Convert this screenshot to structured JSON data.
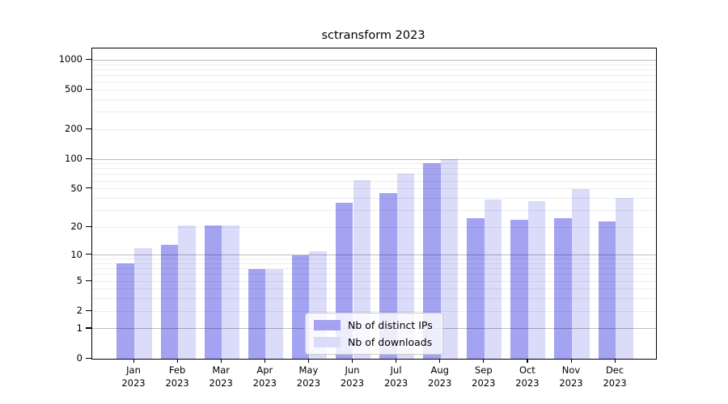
{
  "chart_data": {
    "type": "bar",
    "title": "sctransform 2023",
    "categories": [
      "Jan 2023",
      "Feb 2023",
      "Mar 2023",
      "Apr 2023",
      "May 2023",
      "Jun 2023",
      "Jul 2023",
      "Aug 2023",
      "Sep 2023",
      "Oct 2023",
      "Nov 2023",
      "Dec 2023"
    ],
    "series": [
      {
        "name": "Nb of distinct IPs",
        "values": [
          8,
          13,
          21,
          7,
          10,
          36,
          45,
          92,
          25,
          24,
          25,
          23
        ]
      },
      {
        "name": "Nb of downloads",
        "values": [
          12,
          21,
          21,
          7,
          11,
          61,
          72,
          101,
          39,
          37,
          50,
          40
        ]
      }
    ],
    "xlabel": "",
    "ylabel": "",
    "yscale": "log1p",
    "y_ticks": [
      0,
      1,
      2,
      5,
      10,
      20,
      50,
      100,
      200,
      500,
      1000
    ],
    "ylim": [
      0,
      1310
    ],
    "grid": "both",
    "legend_position": "lower center"
  },
  "legend": {
    "items": [
      {
        "label": "Nb of distinct IPs"
      },
      {
        "label": "Nb of downloads"
      }
    ]
  },
  "colors": {
    "distinct_ips": "#a3a3f1",
    "downloads": "#dbdbfa",
    "grid_major": "rgba(0,0,0,0.26)",
    "grid_minor": "rgba(0,0,0,0.07)",
    "axis": "#000000"
  }
}
